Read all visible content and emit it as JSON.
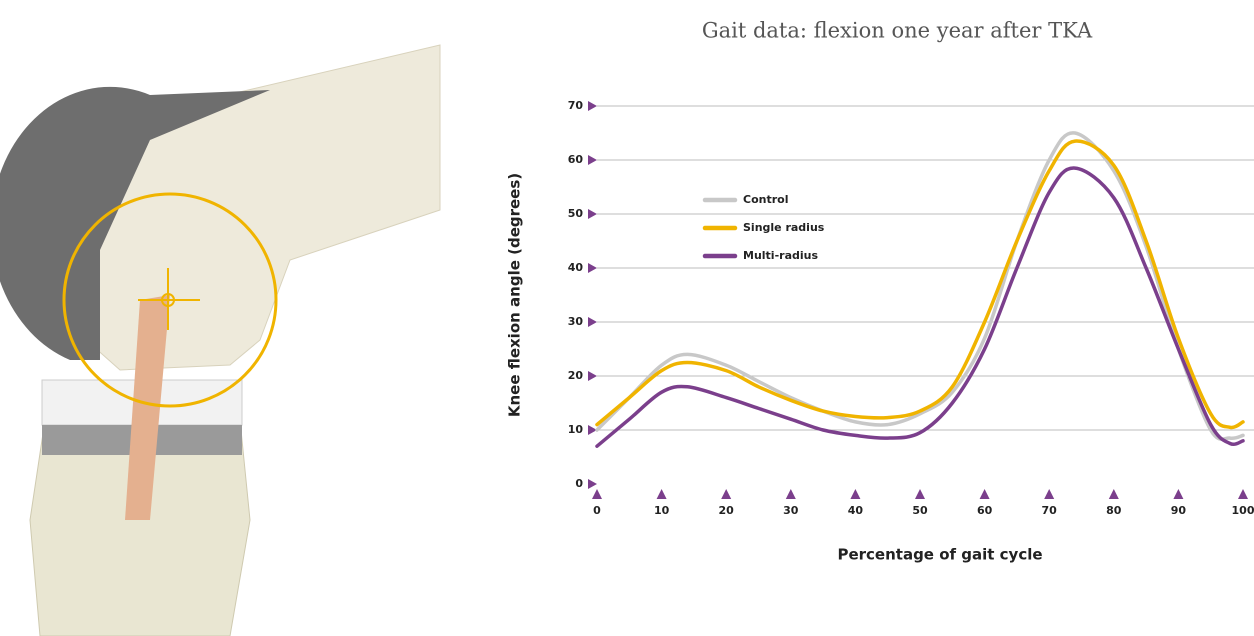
{
  "chart_data": {
    "type": "line",
    "title": "Gait data: flexion one year after TKA",
    "x_label": "Percentage of gait cycle",
    "y_label": "Knee flexion angle (degrees)",
    "x": [
      0,
      5,
      10,
      14,
      20,
      25,
      30,
      35,
      40,
      45,
      50,
      55,
      60,
      65,
      70,
      74,
      80,
      85,
      90,
      95,
      98,
      100
    ],
    "series": [
      {
        "name": "Control",
        "color": "#c8c8c8",
        "values": [
          10,
          16,
          22,
          24,
          22,
          19,
          16,
          13.5,
          11.5,
          11,
          13,
          17,
          27,
          45,
          60,
          65,
          58,
          44,
          25,
          10,
          8.5,
          9
        ]
      },
      {
        "name": "Single radius",
        "color": "#f0b400",
        "values": [
          11,
          16,
          21,
          22.5,
          21,
          18,
          15.5,
          13.5,
          12.5,
          12.3,
          13.5,
          18,
          30,
          45,
          58,
          63.5,
          59,
          45,
          27,
          13,
          10.5,
          11.5
        ]
      },
      {
        "name": "Multi-radius",
        "color": "#7b3f8c",
        "values": [
          7,
          12,
          17,
          18,
          16,
          14,
          12,
          10,
          9,
          8.5,
          9.5,
          15,
          25,
          40,
          54,
          58.5,
          53,
          40,
          25,
          11,
          7.5,
          8
        ]
      }
    ],
    "xlim": [
      0,
      100
    ],
    "xticks": [
      0,
      10,
      20,
      30,
      40,
      50,
      60,
      70,
      80,
      90,
      100
    ],
    "ylim": [
      0,
      70
    ],
    "yticks": [
      0,
      10,
      20,
      30,
      40,
      50,
      60,
      70
    ],
    "grid": true,
    "tick_color": "#7b3f8c"
  }
}
